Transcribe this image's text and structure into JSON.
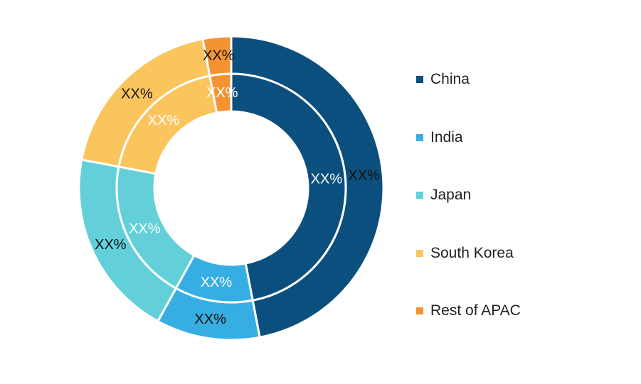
{
  "chart_data": {
    "type": "pie",
    "variant": "double-donut",
    "categories": [
      "China",
      "India",
      "Japan",
      "South Korea",
      "Rest of APAC"
    ],
    "colors": [
      "#0b4f7e",
      "#36aee3",
      "#63d0d9",
      "#fbc55e",
      "#f39331"
    ],
    "series": [
      {
        "values": [
          47,
          11,
          20,
          19,
          3
        ],
        "labels": [
          "XX%",
          "XX%",
          "XX%",
          "XX%",
          "XX%"
        ]
      },
      {
        "values": [
          47,
          11,
          20,
          19,
          3
        ],
        "labels": [
          "XX%",
          "XX%",
          "XX%",
          "XX%",
          "XX%"
        ]
      }
    ],
    "legend_position": "right"
  }
}
